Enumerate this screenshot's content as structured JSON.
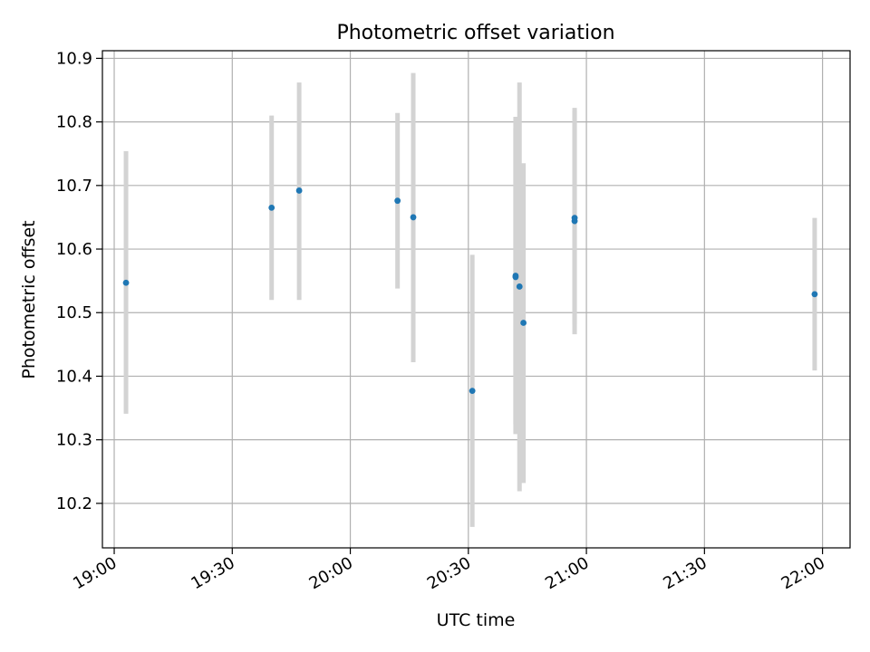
{
  "chart_data": {
    "type": "scatter",
    "title": "Photometric offset variation",
    "xlabel": "UTC time",
    "ylabel": "Photometric offset",
    "x_unit": "minutes",
    "xlim": [
      "18:57",
      "22:07"
    ],
    "ylim": [
      10.13,
      10.912
    ],
    "x_ticks": [
      "19:00",
      "19:30",
      "20:00",
      "20:30",
      "21:00",
      "21:30",
      "22:00"
    ],
    "y_ticks": [
      "10.2",
      "10.3",
      "10.4",
      "10.5",
      "10.6",
      "10.7",
      "10.8",
      "10.9"
    ],
    "grid": true,
    "legend": "none",
    "colors": {
      "point": "#1f77b4",
      "errorbar": "#d3d3d3",
      "grid": "#b0b0b0"
    },
    "series": [
      {
        "points": [
          {
            "x": "19:03",
            "y": 10.547,
            "low": 10.341,
            "high": 10.754
          },
          {
            "x": "19:40",
            "y": 10.665,
            "low": 10.52,
            "high": 10.81
          },
          {
            "x": "19:47",
            "y": 10.692,
            "low": 10.52,
            "high": 10.862
          },
          {
            "x": "20:12",
            "y": 10.676,
            "low": 10.538,
            "high": 10.814
          },
          {
            "x": "20:16",
            "y": 10.65,
            "low": 10.422,
            "high": 10.877
          },
          {
            "x": "20:31",
            "y": 10.377,
            "low": 10.163,
            "high": 10.591
          },
          {
            "x": "20:42",
            "y": 10.558,
            "low": 10.309,
            "high": 10.808
          },
          {
            "x": "20:42",
            "y": 10.556,
            "low": 10.324,
            "high": 10.79
          },
          {
            "x": "20:43",
            "y": 10.541,
            "low": 10.219,
            "high": 10.862
          },
          {
            "x": "20:44",
            "y": 10.484,
            "low": 10.232,
            "high": 10.735
          },
          {
            "x": "20:57",
            "y": 10.644,
            "low": 10.466,
            "high": 10.822
          },
          {
            "x": "20:57",
            "y": 10.649,
            "low": 10.481,
            "high": 10.817
          },
          {
            "x": "21:58",
            "y": 10.529,
            "low": 10.409,
            "high": 10.649
          }
        ]
      }
    ]
  }
}
